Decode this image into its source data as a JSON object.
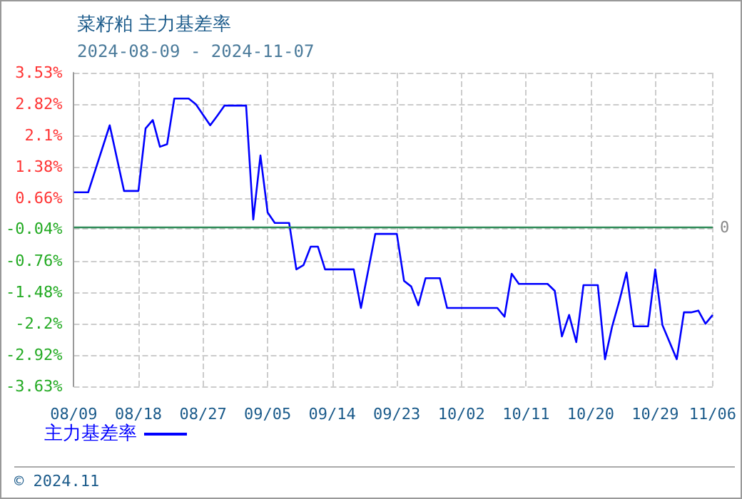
{
  "chart_data": {
    "type": "line",
    "title": "菜籽粕 主力基差率",
    "subtitle": "2024-08-09 - 2024-11-07",
    "annotations": [
      "© 2024.11"
    ],
    "x": [
      "2024-08-09",
      "2024-08-11",
      "2024-08-14",
      "2024-08-16",
      "2024-08-18",
      "2024-08-19",
      "2024-08-20",
      "2024-08-21",
      "2024-08-22",
      "2024-08-23",
      "2024-08-25",
      "2024-08-26",
      "2024-08-28",
      "2024-08-29",
      "2024-08-30",
      "2024-09-02",
      "2024-09-03",
      "2024-09-04",
      "2024-09-05",
      "2024-09-06",
      "2024-09-08",
      "2024-09-09",
      "2024-09-10",
      "2024-09-11",
      "2024-09-12",
      "2024-09-13",
      "2024-09-17",
      "2024-09-18",
      "2024-09-20",
      "2024-09-23",
      "2024-09-24",
      "2024-09-25",
      "2024-09-26",
      "2024-09-27",
      "2024-09-29",
      "2024-09-30",
      "2024-10-07",
      "2024-10-08",
      "2024-10-09",
      "2024-10-10",
      "2024-10-14",
      "2024-10-15",
      "2024-10-16",
      "2024-10-17",
      "2024-10-18",
      "2024-10-19",
      "2024-10-21",
      "2024-10-22",
      "2024-10-23",
      "2024-10-24",
      "2024-10-25",
      "2024-10-26",
      "2024-10-28",
      "2024-10-29",
      "2024-10-30",
      "2024-11-01",
      "2024-11-02",
      "2024-11-03",
      "2024-11-04",
      "2024-11-05",
      "2024-11-06"
    ],
    "series": [
      {
        "name": "主力基差率",
        "color": "#0000ff",
        "values": [
          0.8,
          0.8,
          2.33,
          0.83,
          0.83,
          2.26,
          2.45,
          1.84,
          1.9,
          2.94,
          2.94,
          2.81,
          2.33,
          2.55,
          2.78,
          2.78,
          0.18,
          1.64,
          0.34,
          0.1,
          0.1,
          -0.96,
          -0.86,
          -0.44,
          -0.44,
          -0.96,
          -0.96,
          -1.84,
          -0.15,
          -0.15,
          -1.22,
          -1.35,
          -1.78,
          -1.16,
          -1.16,
          -1.84,
          -1.84,
          -2.04,
          -1.06,
          -1.29,
          -1.29,
          -1.45,
          -2.49,
          -2.0,
          -2.62,
          -1.32,
          -1.32,
          -3.01,
          -2.26,
          -1.68,
          -1.03,
          -2.26,
          -2.26,
          -0.96,
          -2.23,
          -3.01,
          -1.94,
          -1.94,
          -1.9,
          -2.2,
          -2.0
        ]
      }
    ],
    "xlim": [
      "2024-08-09",
      "2024-11-06"
    ],
    "xticks": [
      {
        "value": "2024-08-09",
        "label": "08/09"
      },
      {
        "value": "2024-08-18",
        "label": "08/18"
      },
      {
        "value": "2024-08-27",
        "label": "08/27"
      },
      {
        "value": "2024-09-05",
        "label": "09/05"
      },
      {
        "value": "2024-09-14",
        "label": "09/14"
      },
      {
        "value": "2024-09-23",
        "label": "09/23"
      },
      {
        "value": "2024-10-02",
        "label": "10/02"
      },
      {
        "value": "2024-10-11",
        "label": "10/11"
      },
      {
        "value": "2024-10-20",
        "label": "10/20"
      },
      {
        "value": "2024-10-29",
        "label": "10/29"
      },
      {
        "value": "2024-11-06",
        "label": "11/06"
      }
    ],
    "ylim": [
      -3.63,
      3.53
    ],
    "yticks": [
      {
        "value": 3.53,
        "label": "3.53%"
      },
      {
        "value": 2.82,
        "label": "2.82%"
      },
      {
        "value": 2.1,
        "label": "2.1%"
      },
      {
        "value": 1.38,
        "label": "1.38%"
      },
      {
        "value": 0.66,
        "label": "0.66%"
      },
      {
        "value": -0.04,
        "label": "-0.04%"
      },
      {
        "value": -0.76,
        "label": "-0.76%"
      },
      {
        "value": -1.48,
        "label": "-1.48%"
      },
      {
        "value": -2.2,
        "label": "-2.2%"
      },
      {
        "value": -2.92,
        "label": "-2.92%"
      },
      {
        "value": -3.63,
        "label": "-3.63%"
      }
    ],
    "ref_lines": [
      {
        "axis": "y",
        "value": 0,
        "label": "0",
        "color": "#2e8b57"
      }
    ],
    "grid": true,
    "legend": "bottom left",
    "marker": "none",
    "line_style": "solid"
  }
}
